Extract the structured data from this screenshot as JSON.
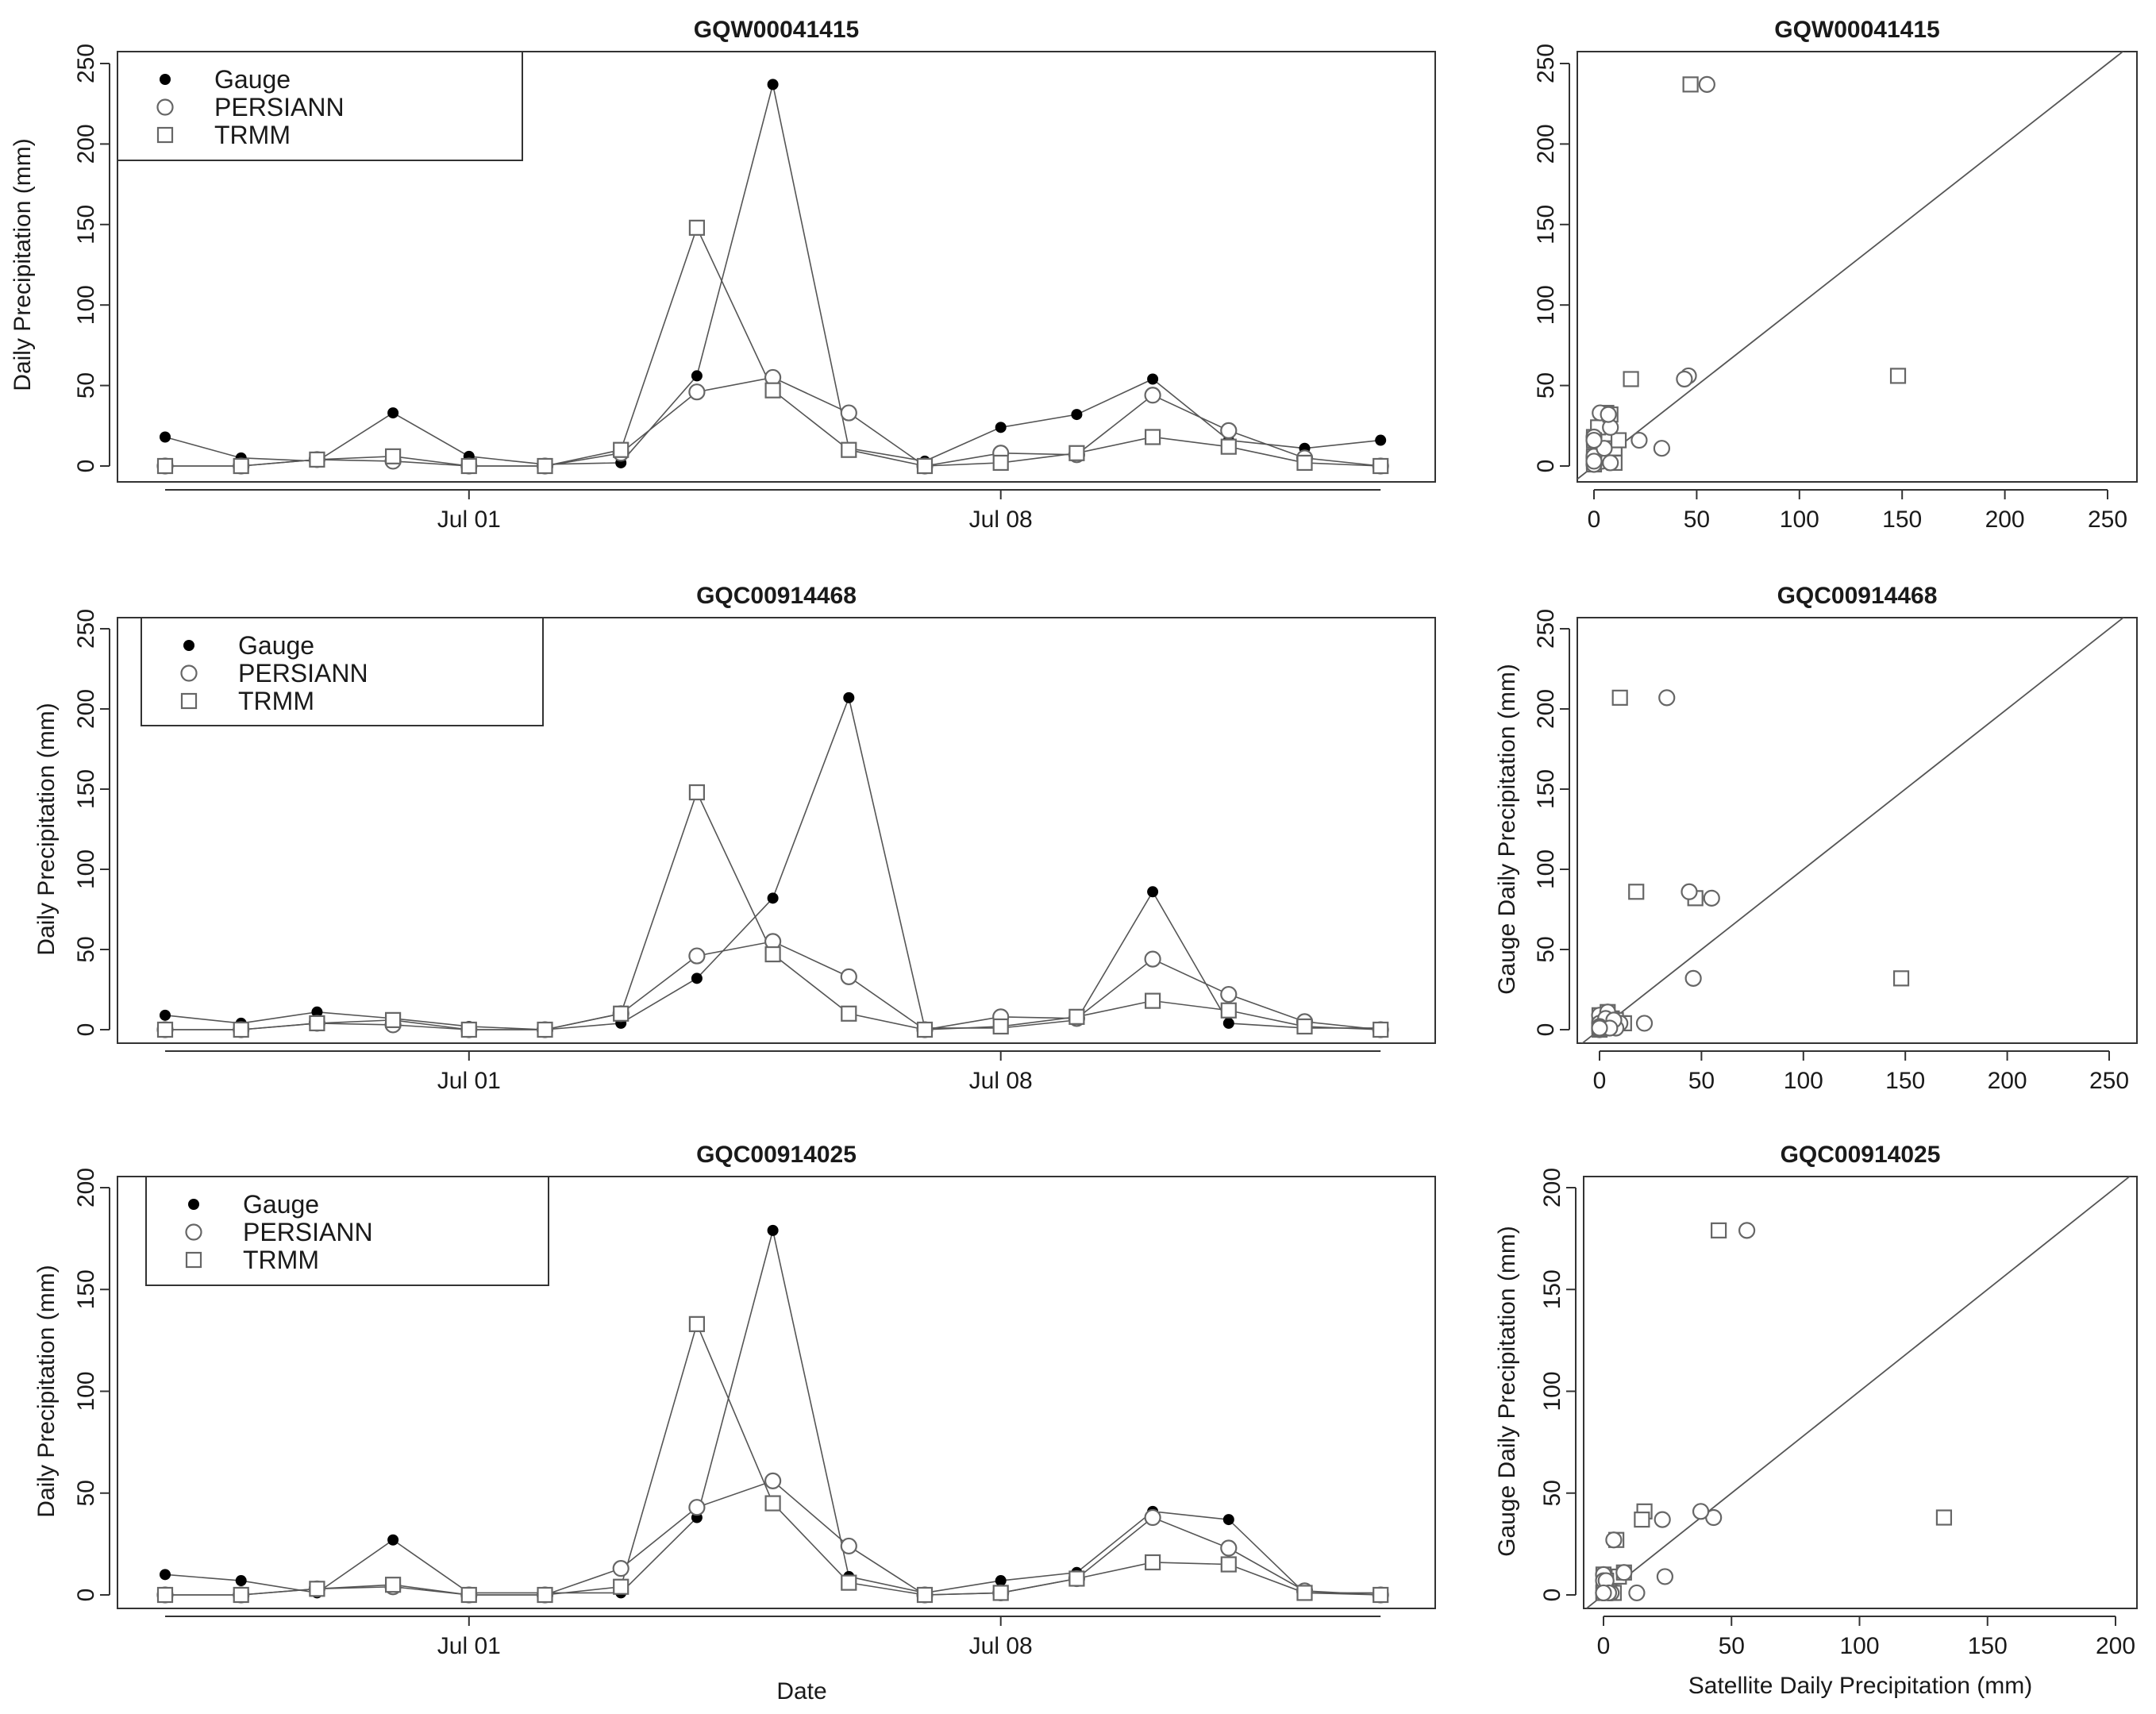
{
  "figure": {
    "x_axis_label": "Date",
    "scatter_x_label": "Satellite Daily Precipitation (mm)",
    "colors": {
      "axis": "#333333",
      "line": "#555555",
      "gauge": "#000000",
      "open_marker": "#666666",
      "diagonal": "#555555"
    },
    "legend_entries": [
      "Gauge",
      "PERSIANN",
      "TRMM"
    ]
  },
  "chart_data": [
    {
      "type": "line",
      "title": "GQW00041415",
      "xlabel": "",
      "ylabel": "Daily Precipitation (mm)",
      "ylim": [
        0,
        250
      ],
      "yticks": [
        0,
        50,
        100,
        150,
        200,
        250
      ],
      "x": [
        1,
        2,
        3,
        4,
        5,
        6,
        7,
        8,
        9,
        10,
        11,
        12,
        13,
        14,
        15,
        16,
        17
      ],
      "xticks": [
        {
          "x": 5,
          "label": "Jul 01"
        },
        {
          "x": 12,
          "label": "Jul 08"
        }
      ],
      "series": [
        {
          "name": "Gauge",
          "values": [
            18,
            5,
            3,
            33,
            6,
            1,
            2,
            56,
            237,
            11,
            3,
            24,
            32,
            54,
            16,
            11,
            16
          ]
        },
        {
          "name": "PERSIANN",
          "values": [
            0,
            0,
            4,
            3,
            0,
            0,
            8,
            46,
            55,
            33,
            0,
            8,
            7,
            44,
            22,
            5,
            0
          ]
        },
        {
          "name": "TRMM",
          "values": [
            0,
            0,
            4,
            6,
            0,
            0,
            10,
            148,
            47,
            10,
            0,
            2,
            8,
            18,
            12,
            2,
            0
          ]
        }
      ]
    },
    {
      "type": "scatter",
      "title": "GQW00041415",
      "xlabel": "",
      "ylabel": "",
      "xlim": [
        0,
        250
      ],
      "ylim": [
        0,
        250
      ],
      "xticks": [
        0,
        50,
        100,
        150,
        200,
        250
      ],
      "yticks": [
        0,
        50,
        100,
        150,
        200,
        250
      ],
      "persiann_points": [
        [
          0,
          18
        ],
        [
          0,
          5
        ],
        [
          4,
          3
        ],
        [
          3,
          33
        ],
        [
          0,
          6
        ],
        [
          0,
          1
        ],
        [
          8,
          2
        ],
        [
          46,
          56
        ],
        [
          55,
          237
        ],
        [
          33,
          11
        ],
        [
          0,
          3
        ],
        [
          8,
          24
        ],
        [
          7,
          32
        ],
        [
          44,
          54
        ],
        [
          22,
          16
        ],
        [
          5,
          11
        ],
        [
          0,
          16
        ]
      ],
      "trmm_points": [
        [
          0,
          18
        ],
        [
          0,
          5
        ],
        [
          4,
          3
        ],
        [
          6,
          33
        ],
        [
          0,
          6
        ],
        [
          0,
          1
        ],
        [
          10,
          2
        ],
        [
          148,
          56
        ],
        [
          47,
          237
        ],
        [
          10,
          11
        ],
        [
          0,
          3
        ],
        [
          2,
          24
        ],
        [
          8,
          32
        ],
        [
          18,
          54
        ],
        [
          12,
          16
        ],
        [
          2,
          11
        ],
        [
          0,
          16
        ]
      ]
    },
    {
      "type": "line",
      "title": "GQC00914468",
      "xlabel": "",
      "ylabel": "Daily Precipitation (mm)",
      "ylim": [
        0,
        250
      ],
      "yticks": [
        0,
        50,
        100,
        150,
        200,
        250
      ],
      "x": [
        1,
        2,
        3,
        4,
        5,
        6,
        7,
        8,
        9,
        10,
        11,
        12,
        13,
        14,
        15,
        16,
        17
      ],
      "xticks": [
        {
          "x": 5,
          "label": "Jul 01"
        },
        {
          "x": 12,
          "label": "Jul 08"
        }
      ],
      "series": [
        {
          "name": "Gauge",
          "values": [
            9,
            4,
            11,
            7,
            2,
            0,
            4,
            32,
            82,
            207,
            1,
            1,
            6,
            86,
            4,
            1,
            1
          ]
        },
        {
          "name": "PERSIANN",
          "values": [
            0,
            0,
            4,
            3,
            0,
            0,
            10,
            46,
            55,
            33,
            0,
            8,
            7,
            44,
            22,
            5,
            0
          ]
        },
        {
          "name": "TRMM",
          "values": [
            0,
            0,
            4,
            6,
            0,
            0,
            10,
            148,
            47,
            10,
            0,
            2,
            8,
            18,
            12,
            2,
            0
          ]
        }
      ]
    },
    {
      "type": "scatter",
      "title": "GQC00914468",
      "xlabel": "",
      "ylabel": "Gauge Daily Precipitation (mm)",
      "xlim": [
        0,
        250
      ],
      "ylim": [
        0,
        250
      ],
      "xticks": [
        0,
        50,
        100,
        150,
        200,
        250
      ],
      "yticks": [
        0,
        50,
        100,
        150,
        200,
        250
      ],
      "persiann_points": [
        [
          0,
          9
        ],
        [
          0,
          4
        ],
        [
          4,
          11
        ],
        [
          3,
          7
        ],
        [
          0,
          2
        ],
        [
          0,
          0
        ],
        [
          10,
          4
        ],
        [
          46,
          32
        ],
        [
          55,
          82
        ],
        [
          33,
          207
        ],
        [
          0,
          1
        ],
        [
          8,
          1
        ],
        [
          7,
          6
        ],
        [
          44,
          86
        ],
        [
          22,
          4
        ],
        [
          5,
          1
        ],
        [
          0,
          1
        ]
      ],
      "trmm_points": [
        [
          0,
          9
        ],
        [
          0,
          4
        ],
        [
          4,
          11
        ],
        [
          6,
          7
        ],
        [
          0,
          2
        ],
        [
          0,
          0
        ],
        [
          10,
          4
        ],
        [
          148,
          32
        ],
        [
          47,
          82
        ],
        [
          10,
          207
        ],
        [
          0,
          1
        ],
        [
          2,
          1
        ],
        [
          8,
          6
        ],
        [
          18,
          86
        ],
        [
          12,
          4
        ],
        [
          2,
          1
        ],
        [
          0,
          1
        ]
      ]
    },
    {
      "type": "line",
      "title": "GQC00914025",
      "xlabel": "",
      "ylabel": "Daily Precipitation (mm)",
      "ylim": [
        0,
        200
      ],
      "yticks": [
        0,
        50,
        100,
        150,
        200
      ],
      "x": [
        1,
        2,
        3,
        4,
        5,
        6,
        7,
        8,
        9,
        10,
        11,
        12,
        13,
        14,
        15,
        16,
        17
      ],
      "xticks": [
        {
          "x": 5,
          "label": "Jul 01"
        },
        {
          "x": 12,
          "label": "Jul 08"
        }
      ],
      "series": [
        {
          "name": "Gauge",
          "values": [
            10,
            7,
            1,
            27,
            1,
            1,
            1,
            38,
            179,
            9,
            1,
            7,
            11,
            41,
            37,
            1,
            1
          ]
        },
        {
          "name": "PERSIANN",
          "values": [
            0,
            0,
            3,
            4,
            0,
            0,
            13,
            43,
            56,
            24,
            0,
            1,
            8,
            38,
            23,
            2,
            0
          ]
        },
        {
          "name": "TRMM",
          "values": [
            0,
            0,
            3,
            5,
            0,
            0,
            4,
            133,
            45,
            6,
            0,
            1,
            8,
            16,
            15,
            1,
            0
          ]
        }
      ]
    },
    {
      "type": "scatter",
      "title": "GQC00914025",
      "xlabel": "Satellite Daily Precipitation (mm)",
      "ylabel": "Gauge Daily Precipitation (mm)",
      "xlim": [
        0,
        200
      ],
      "ylim": [
        0,
        200
      ],
      "xticks": [
        0,
        50,
        100,
        150,
        200
      ],
      "yticks": [
        0,
        50,
        100,
        150,
        200
      ],
      "persiann_points": [
        [
          0,
          10
        ],
        [
          0,
          7
        ],
        [
          3,
          1
        ],
        [
          4,
          27
        ],
        [
          0,
          1
        ],
        [
          0,
          1
        ],
        [
          13,
          1
        ],
        [
          43,
          38
        ],
        [
          56,
          179
        ],
        [
          24,
          9
        ],
        [
          0,
          1
        ],
        [
          1,
          7
        ],
        [
          8,
          11
        ],
        [
          38,
          41
        ],
        [
          23,
          37
        ],
        [
          2,
          1
        ],
        [
          0,
          1
        ]
      ],
      "trmm_points": [
        [
          0,
          10
        ],
        [
          0,
          7
        ],
        [
          3,
          1
        ],
        [
          5,
          27
        ],
        [
          0,
          1
        ],
        [
          0,
          1
        ],
        [
          4,
          1
        ],
        [
          133,
          38
        ],
        [
          45,
          179
        ],
        [
          6,
          9
        ],
        [
          0,
          1
        ],
        [
          1,
          7
        ],
        [
          8,
          11
        ],
        [
          16,
          41
        ],
        [
          15,
          37
        ],
        [
          1,
          1
        ],
        [
          0,
          1
        ]
      ]
    }
  ]
}
